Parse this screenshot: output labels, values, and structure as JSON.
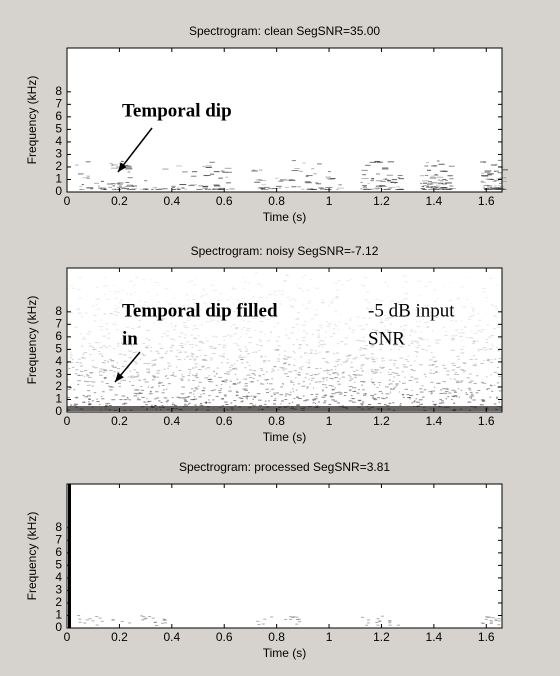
{
  "chart_data": [
    {
      "type": "spectrogram",
      "title": "Spectrogram: clean  SegSNR=35.00",
      "xlabel": "Time (s)",
      "ylabel": "Frequency (kHz)",
      "xlim": [
        0,
        1.66
      ],
      "xticks": [
        0,
        0.2,
        0.4,
        0.6,
        0.8,
        1,
        1.2,
        1.4,
        1.6
      ],
      "ylim": [
        0,
        11.5
      ],
      "yticks": [
        0,
        1,
        2,
        3,
        4,
        5,
        6,
        7,
        8
      ],
      "grid": false,
      "annotations": [
        {
          "lines": [
            "Temporal dip"
          ]
        }
      ]
    },
    {
      "type": "spectrogram",
      "title": "Spectrogram: noisy  SegSNR=-7.12",
      "xlabel": "Time (s)",
      "ylabel": "Frequency (kHz)",
      "xlim": [
        0,
        1.66
      ],
      "xticks": [
        0,
        0.2,
        0.4,
        0.6,
        0.8,
        1,
        1.2,
        1.4,
        1.6
      ],
      "ylim": [
        0,
        11.5
      ],
      "yticks": [
        0,
        1,
        2,
        3,
        4,
        5,
        6,
        7,
        8
      ],
      "grid": false,
      "annotations": [
        {
          "lines": [
            "Temporal dip filled",
            "in"
          ]
        },
        {
          "lines": [
            "-5 dB input",
            "SNR"
          ]
        }
      ]
    },
    {
      "type": "spectrogram",
      "title": "Spectrogram: processed  SegSNR=3.81",
      "xlabel": "Time (s)",
      "ylabel": "Frequency (kHz)",
      "xlim": [
        0,
        1.66
      ],
      "xticks": [
        0,
        0.2,
        0.4,
        0.6,
        0.8,
        1,
        1.2,
        1.4,
        1.6
      ],
      "ylim": [
        0,
        11.5
      ],
      "yticks": [
        0,
        1,
        2,
        3,
        4,
        5,
        6,
        7,
        8
      ],
      "grid": false,
      "annotations": []
    }
  ]
}
